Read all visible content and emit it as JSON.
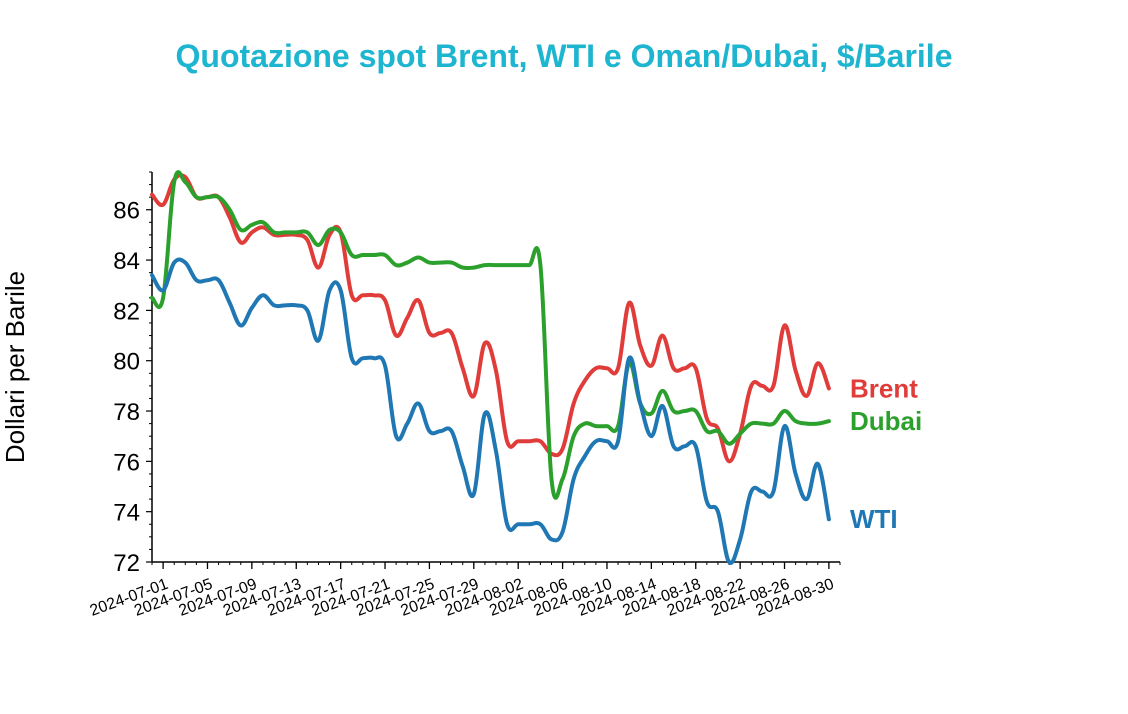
{
  "chart_data": {
    "type": "line",
    "title": "Quotazione spot Brent, WTI e Oman/Dubai, $/Barile",
    "xlabel": "",
    "ylabel": "Dollari per Barile",
    "ylim": [
      72,
      87.5
    ],
    "xlim": [
      "2024-06-30",
      "2024-08-31"
    ],
    "y_ticks": [
      72,
      74,
      76,
      78,
      80,
      82,
      84,
      86
    ],
    "x_ticks": [
      "2024-07-01",
      "2024-07-05",
      "2024-07-09",
      "2024-07-13",
      "2024-07-17",
      "2024-07-21",
      "2024-07-25",
      "2024-07-29",
      "2024-08-02",
      "2024-08-06",
      "2024-08-10",
      "2024-08-14",
      "2024-08-18",
      "2024-08-22",
      "2024-08-26",
      "2024-08-30"
    ],
    "grid": false,
    "legend": "direct labels at right end of lines",
    "series": [
      {
        "name": "Brent",
        "color": "#e03c3a",
        "x": [
          "2024-06-30",
          "2024-07-01",
          "2024-07-02",
          "2024-07-03",
          "2024-07-04",
          "2024-07-05",
          "2024-07-06",
          "2024-07-07",
          "2024-07-08",
          "2024-07-09",
          "2024-07-10",
          "2024-07-11",
          "2024-07-12",
          "2024-07-13",
          "2024-07-14",
          "2024-07-15",
          "2024-07-16",
          "2024-07-17",
          "2024-07-18",
          "2024-07-19",
          "2024-07-20",
          "2024-07-21",
          "2024-07-22",
          "2024-07-23",
          "2024-07-24",
          "2024-07-25",
          "2024-07-26",
          "2024-07-27",
          "2024-07-28",
          "2024-07-29",
          "2024-07-30",
          "2024-07-31",
          "2024-08-01",
          "2024-08-02",
          "2024-08-03",
          "2024-08-04",
          "2024-08-05",
          "2024-08-06",
          "2024-08-07",
          "2024-08-08",
          "2024-08-09",
          "2024-08-10",
          "2024-08-11",
          "2024-08-12",
          "2024-08-13",
          "2024-08-14",
          "2024-08-15",
          "2024-08-16",
          "2024-08-17",
          "2024-08-18",
          "2024-08-19",
          "2024-08-20",
          "2024-08-21",
          "2024-08-22",
          "2024-08-23",
          "2024-08-24",
          "2024-08-25",
          "2024-08-26",
          "2024-08-27",
          "2024-08-28",
          "2024-08-29",
          "2024-08-30"
        ],
        "values": [
          86.6,
          86.2,
          87.2,
          87.3,
          86.5,
          86.5,
          86.5,
          85.7,
          84.7,
          85.1,
          85.3,
          85.0,
          85.0,
          85.0,
          84.8,
          83.7,
          85.0,
          85.1,
          82.6,
          82.6,
          82.6,
          82.4,
          81.0,
          81.7,
          82.4,
          81.1,
          81.1,
          81.1,
          79.7,
          78.6,
          80.7,
          79.6,
          76.8,
          76.8,
          76.8,
          76.8,
          76.3,
          76.5,
          78.3,
          79.2,
          79.7,
          79.7,
          79.7,
          82.3,
          80.6,
          79.8,
          81.0,
          79.7,
          79.7,
          79.7,
          77.7,
          77.3,
          76.0,
          77.1,
          79.0,
          79.0,
          79.0,
          81.4,
          79.6,
          78.6,
          79.9,
          78.9
        ]
      },
      {
        "name": "Dubai",
        "color": "#2ca02c",
        "x": [
          "2024-06-30",
          "2024-07-01",
          "2024-07-02",
          "2024-07-03",
          "2024-07-04",
          "2024-07-05",
          "2024-07-06",
          "2024-07-07",
          "2024-07-08",
          "2024-07-09",
          "2024-07-10",
          "2024-07-11",
          "2024-07-12",
          "2024-07-13",
          "2024-07-14",
          "2024-07-15",
          "2024-07-16",
          "2024-07-17",
          "2024-07-18",
          "2024-07-19",
          "2024-07-20",
          "2024-07-21",
          "2024-07-22",
          "2024-07-23",
          "2024-07-24",
          "2024-07-25",
          "2024-07-26",
          "2024-07-27",
          "2024-07-28",
          "2024-07-29",
          "2024-07-30",
          "2024-07-31",
          "2024-08-01",
          "2024-08-02",
          "2024-08-03",
          "2024-08-04",
          "2024-08-05",
          "2024-08-06",
          "2024-08-07",
          "2024-08-08",
          "2024-08-09",
          "2024-08-10",
          "2024-08-11",
          "2024-08-12",
          "2024-08-13",
          "2024-08-14",
          "2024-08-15",
          "2024-08-16",
          "2024-08-17",
          "2024-08-18",
          "2024-08-19",
          "2024-08-20",
          "2024-08-21",
          "2024-08-22",
          "2024-08-23",
          "2024-08-24",
          "2024-08-25",
          "2024-08-26",
          "2024-08-27",
          "2024-08-28",
          "2024-08-29",
          "2024-08-30"
        ],
        "values": [
          82.5,
          82.5,
          87.1,
          87.1,
          86.5,
          86.5,
          86.5,
          86.0,
          85.2,
          85.4,
          85.5,
          85.1,
          85.1,
          85.1,
          85.1,
          84.6,
          85.2,
          85.1,
          84.2,
          84.2,
          84.2,
          84.2,
          83.8,
          83.9,
          84.1,
          83.9,
          83.9,
          83.9,
          83.7,
          83.7,
          83.8,
          83.8,
          83.8,
          83.8,
          83.8,
          83.8,
          75.3,
          75.3,
          77.0,
          77.5,
          77.4,
          77.4,
          77.4,
          79.9,
          78.3,
          77.9,
          78.8,
          78.0,
          78.0,
          78.0,
          77.2,
          77.2,
          76.7,
          77.1,
          77.5,
          77.5,
          77.5,
          78.0,
          77.6,
          77.5,
          77.5,
          77.6
        ]
      },
      {
        "name": "WTI",
        "color": "#1f77b4",
        "x": [
          "2024-06-30",
          "2024-07-01",
          "2024-07-02",
          "2024-07-03",
          "2024-07-04",
          "2024-07-05",
          "2024-07-06",
          "2024-07-07",
          "2024-07-08",
          "2024-07-09",
          "2024-07-10",
          "2024-07-11",
          "2024-07-12",
          "2024-07-13",
          "2024-07-14",
          "2024-07-15",
          "2024-07-16",
          "2024-07-17",
          "2024-07-18",
          "2024-07-19",
          "2024-07-20",
          "2024-07-21",
          "2024-07-22",
          "2024-07-23",
          "2024-07-24",
          "2024-07-25",
          "2024-07-26",
          "2024-07-27",
          "2024-07-28",
          "2024-07-29",
          "2024-07-30",
          "2024-07-31",
          "2024-08-01",
          "2024-08-02",
          "2024-08-03",
          "2024-08-04",
          "2024-08-05",
          "2024-08-06",
          "2024-08-07",
          "2024-08-08",
          "2024-08-09",
          "2024-08-10",
          "2024-08-11",
          "2024-08-12",
          "2024-08-13",
          "2024-08-14",
          "2024-08-15",
          "2024-08-16",
          "2024-08-17",
          "2024-08-18",
          "2024-08-19",
          "2024-08-20",
          "2024-08-21",
          "2024-08-22",
          "2024-08-23",
          "2024-08-24",
          "2024-08-25",
          "2024-08-26",
          "2024-08-27",
          "2024-08-28",
          "2024-08-29",
          "2024-08-30"
        ],
        "values": [
          83.4,
          82.8,
          83.9,
          83.9,
          83.2,
          83.2,
          83.2,
          82.3,
          81.4,
          82.1,
          82.6,
          82.2,
          82.2,
          82.2,
          82.0,
          80.8,
          82.8,
          82.8,
          80.1,
          80.1,
          80.1,
          79.8,
          77.0,
          77.5,
          78.3,
          77.2,
          77.2,
          77.2,
          75.8,
          74.7,
          77.9,
          76.4,
          73.5,
          73.5,
          73.5,
          73.5,
          72.9,
          73.2,
          75.3,
          76.2,
          76.8,
          76.8,
          76.8,
          80.1,
          78.3,
          77.0,
          78.2,
          76.6,
          76.6,
          76.6,
          74.4,
          74.0,
          72.0,
          72.9,
          74.8,
          74.8,
          74.8,
          77.4,
          75.5,
          74.5,
          75.9,
          73.7
        ]
      }
    ]
  }
}
